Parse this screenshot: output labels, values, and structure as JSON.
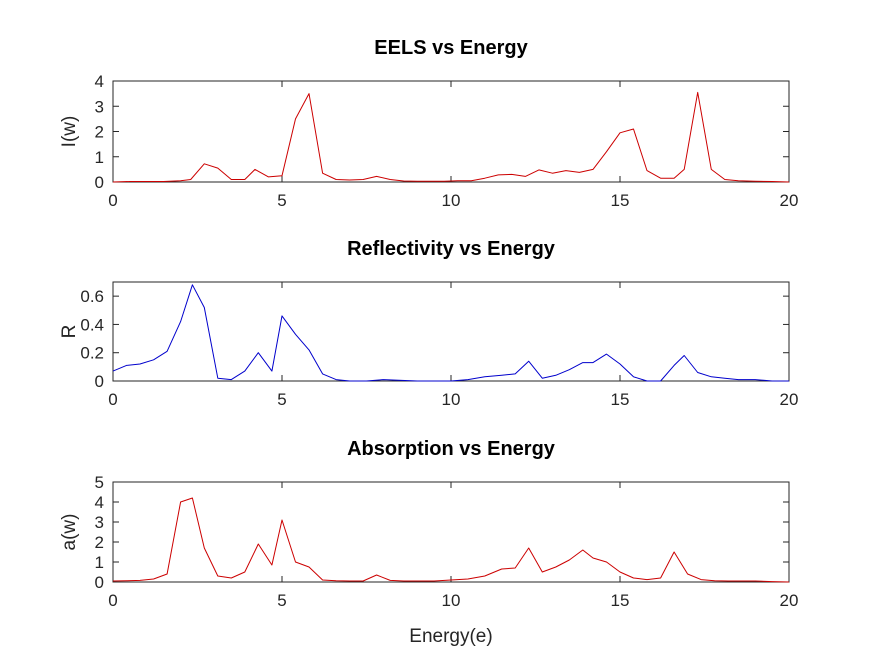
{
  "chart_data": [
    {
      "type": "line",
      "title": "EELS vs Energy",
      "xlabel": "",
      "ylabel": "I(w)",
      "xlim": [
        0,
        20
      ],
      "ylim": [
        0,
        4
      ],
      "xticks": [
        0,
        5,
        10,
        15,
        20
      ],
      "yticks": [
        0,
        1,
        2,
        3,
        4
      ],
      "grid": false,
      "color": "#cc0000",
      "x": [
        0,
        0.5,
        1.0,
        1.5,
        2.0,
        2.3,
        2.7,
        3.1,
        3.5,
        3.9,
        4.2,
        4.6,
        5.0,
        5.4,
        5.8,
        6.2,
        6.6,
        7.0,
        7.4,
        7.8,
        8.2,
        8.6,
        9.0,
        9.4,
        9.8,
        10.2,
        10.6,
        11.0,
        11.4,
        11.8,
        12.2,
        12.6,
        13.0,
        13.4,
        13.8,
        14.2,
        14.6,
        15.0,
        15.4,
        15.8,
        16.2,
        16.6,
        16.9,
        17.3,
        17.7,
        18.1,
        18.5,
        19.0,
        19.5,
        20.0
      ],
      "y": [
        0.0,
        0.02,
        0.02,
        0.02,
        0.05,
        0.1,
        0.72,
        0.55,
        0.1,
        0.1,
        0.5,
        0.2,
        0.25,
        2.5,
        3.5,
        0.35,
        0.1,
        0.08,
        0.1,
        0.22,
        0.1,
        0.04,
        0.03,
        0.03,
        0.03,
        0.05,
        0.05,
        0.15,
        0.28,
        0.3,
        0.22,
        0.48,
        0.35,
        0.45,
        0.38,
        0.5,
        1.2,
        1.95,
        2.1,
        0.45,
        0.15,
        0.15,
        0.5,
        3.55,
        0.5,
        0.1,
        0.05,
        0.03,
        0.02,
        0.0
      ]
    },
    {
      "type": "line",
      "title": "Reflectivity vs Energy",
      "xlabel": "",
      "ylabel": "R",
      "xlim": [
        0,
        20
      ],
      "ylim": [
        0,
        0.7
      ],
      "xticks": [
        0,
        5,
        10,
        15,
        20
      ],
      "yticks": [
        0,
        0.2,
        0.4,
        0.6
      ],
      "grid": false,
      "color": "#0000cc",
      "x": [
        0,
        0.4,
        0.8,
        1.2,
        1.6,
        2.0,
        2.35,
        2.7,
        3.1,
        3.5,
        3.9,
        4.3,
        4.7,
        5.0,
        5.4,
        5.8,
        6.2,
        6.6,
        7.0,
        7.5,
        8.0,
        9.0,
        10.0,
        10.5,
        11.0,
        11.5,
        11.9,
        12.3,
        12.7,
        13.1,
        13.5,
        13.9,
        14.2,
        14.6,
        15.0,
        15.4,
        15.8,
        16.2,
        16.6,
        16.9,
        17.3,
        17.7,
        18.1,
        18.5,
        19.0,
        19.5,
        20.0
      ],
      "y": [
        0.07,
        0.11,
        0.12,
        0.15,
        0.21,
        0.42,
        0.68,
        0.52,
        0.02,
        0.01,
        0.07,
        0.2,
        0.07,
        0.46,
        0.33,
        0.22,
        0.05,
        0.01,
        0.0,
        0.0,
        0.01,
        0.0,
        0.0,
        0.01,
        0.03,
        0.04,
        0.05,
        0.14,
        0.02,
        0.04,
        0.08,
        0.13,
        0.13,
        0.19,
        0.12,
        0.03,
        0.0,
        0.0,
        0.11,
        0.18,
        0.06,
        0.03,
        0.02,
        0.01,
        0.01,
        0.0,
        0.0
      ]
    },
    {
      "type": "line",
      "title": "Absorption vs Energy",
      "xlabel": "Energy(e)",
      "ylabel": "a(w)",
      "xlim": [
        0,
        20
      ],
      "ylim": [
        0,
        5
      ],
      "xticks": [
        0,
        5,
        10,
        15,
        20
      ],
      "yticks": [
        0,
        1,
        2,
        3,
        4,
        5
      ],
      "grid": false,
      "color": "#cc0000",
      "x": [
        0,
        0.4,
        0.8,
        1.2,
        1.6,
        2.0,
        2.35,
        2.7,
        3.1,
        3.5,
        3.9,
        4.3,
        4.7,
        5.0,
        5.4,
        5.8,
        6.2,
        6.6,
        7.0,
        7.4,
        7.8,
        8.2,
        8.6,
        9.0,
        9.5,
        10.0,
        10.5,
        11.0,
        11.5,
        11.9,
        12.3,
        12.7,
        13.1,
        13.5,
        13.9,
        14.2,
        14.6,
        15.0,
        15.4,
        15.8,
        16.2,
        16.6,
        17.0,
        17.4,
        17.8,
        18.2,
        18.6,
        19.0,
        19.5,
        20.0
      ],
      "y": [
        0.05,
        0.06,
        0.08,
        0.15,
        0.4,
        4.0,
        4.2,
        1.7,
        0.3,
        0.2,
        0.5,
        1.9,
        0.85,
        3.1,
        1.0,
        0.75,
        0.1,
        0.06,
        0.05,
        0.05,
        0.35,
        0.08,
        0.05,
        0.05,
        0.05,
        0.1,
        0.15,
        0.3,
        0.65,
        0.7,
        1.7,
        0.5,
        0.75,
        1.1,
        1.6,
        1.2,
        1.0,
        0.5,
        0.2,
        0.12,
        0.2,
        1.5,
        0.4,
        0.12,
        0.06,
        0.05,
        0.05,
        0.05,
        0.02,
        0.0
      ]
    }
  ]
}
